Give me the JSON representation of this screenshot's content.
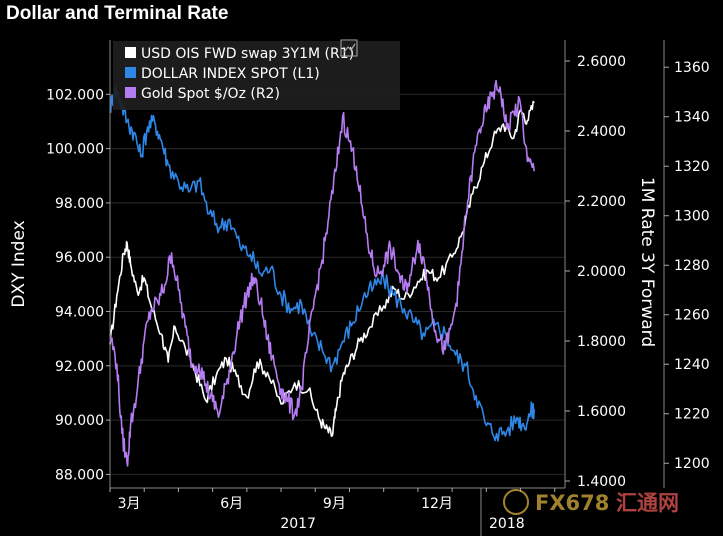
{
  "chart_data": {
    "type": "line",
    "title": "Dollar and Terminal Rate",
    "left_axis": {
      "label": "DXY Index",
      "range": [
        87.5,
        104.0
      ],
      "ticks": [
        "102.000",
        "100.000",
        "98.000",
        "96.000",
        "94.000",
        "92.000",
        "90.000",
        "88.000"
      ],
      "tick_values": [
        102,
        100,
        98,
        96,
        94,
        92,
        90,
        88
      ]
    },
    "right_axis_1": {
      "label": "1M Rate 3Y Forward",
      "range": [
        1.38,
        2.66
      ],
      "ticks": [
        "2.6000",
        "2.4000",
        "2.2000",
        "2.0000",
        "1.8000",
        "1.6000",
        "1.4000"
      ],
      "tick_values": [
        2.6,
        2.4,
        2.2,
        2.0,
        1.8,
        1.6,
        1.4
      ]
    },
    "right_axis_2": {
      "label": "",
      "range": [
        1190,
        1371
      ],
      "ticks": [
        "1360",
        "1340",
        "1320",
        "1300",
        "1280",
        "1260",
        "1240",
        "1220",
        "1200"
      ],
      "tick_values": [
        1360,
        1340,
        1320,
        1300,
        1280,
        1260,
        1240,
        1220,
        1200
      ]
    },
    "x_axis": {
      "range": [
        0,
        13.3
      ],
      "month_ticks": [
        "3月",
        "6月",
        "9月",
        "12月"
      ],
      "month_positions": [
        0.5,
        3.5,
        6.5,
        9.5
      ],
      "year_labels": [
        "2017",
        "2018"
      ],
      "year_positions": [
        5.5,
        11.6
      ]
    },
    "legend": {
      "placement": "top-left",
      "entries": [
        "USD OIS FWD swap 3Y1M  (R1)",
        "DOLLAR INDEX SPOT  (L1)",
        "Gold Spot $/Oz  (R2)"
      ]
    },
    "series": [
      {
        "name": "USD OIS FWD swap 3Y1M (R1)",
        "axis": "right1",
        "color": "#ffffff",
        "points": [
          [
            0,
            1.79
          ],
          [
            0.2,
            1.93
          ],
          [
            0.4,
            2.05
          ],
          [
            0.5,
            2.08
          ],
          [
            0.6,
            2.02
          ],
          [
            0.8,
            1.94
          ],
          [
            1.0,
            1.98
          ],
          [
            1.2,
            1.9
          ],
          [
            1.5,
            1.82
          ],
          [
            1.7,
            1.74
          ],
          [
            1.9,
            1.84
          ],
          [
            2.2,
            1.78
          ],
          [
            2.5,
            1.71
          ],
          [
            2.8,
            1.63
          ],
          [
            3.1,
            1.7
          ],
          [
            3.4,
            1.75
          ],
          [
            3.7,
            1.7
          ],
          [
            4.0,
            1.64
          ],
          [
            4.3,
            1.74
          ],
          [
            4.6,
            1.71
          ],
          [
            5.0,
            1.62
          ],
          [
            5.4,
            1.68
          ],
          [
            5.8,
            1.66
          ],
          [
            6.1,
            1.58
          ],
          [
            6.3,
            1.55
          ],
          [
            6.5,
            1.53
          ],
          [
            6.6,
            1.6
          ],
          [
            6.8,
            1.7
          ],
          [
            7.0,
            1.74
          ],
          [
            7.3,
            1.8
          ],
          [
            7.6,
            1.84
          ],
          [
            8.0,
            1.9
          ],
          [
            8.3,
            1.95
          ],
          [
            8.6,
            1.92
          ],
          [
            9.0,
            1.97
          ],
          [
            9.3,
            2.0
          ],
          [
            9.6,
            1.98
          ],
          [
            10.0,
            2.04
          ],
          [
            10.3,
            2.11
          ],
          [
            10.6,
            2.22
          ],
          [
            10.9,
            2.3
          ],
          [
            11.2,
            2.38
          ],
          [
            11.5,
            2.42
          ],
          [
            11.8,
            2.38
          ],
          [
            12.0,
            2.46
          ],
          [
            12.2,
            2.43
          ],
          [
            12.4,
            2.48
          ]
        ]
      },
      {
        "name": "DOLLAR INDEX SPOT (L1)",
        "axis": "left",
        "color": "#2e86e6",
        "points": [
          [
            0,
            101.5
          ],
          [
            0.15,
            102.2
          ],
          [
            0.3,
            101.8
          ],
          [
            0.5,
            101.0
          ],
          [
            0.7,
            100.6
          ],
          [
            0.9,
            99.7
          ],
          [
            1.1,
            100.8
          ],
          [
            1.3,
            101.0
          ],
          [
            1.5,
            100.3
          ],
          [
            1.7,
            99.4
          ],
          [
            2.0,
            98.8
          ],
          [
            2.3,
            98.4
          ],
          [
            2.6,
            98.8
          ],
          [
            2.9,
            97.6
          ],
          [
            3.2,
            97.1
          ],
          [
            3.5,
            97.4
          ],
          [
            3.8,
            96.4
          ],
          [
            4.1,
            96.1
          ],
          [
            4.4,
            95.4
          ],
          [
            4.7,
            95.6
          ],
          [
            5.0,
            94.6
          ],
          [
            5.3,
            94.1
          ],
          [
            5.6,
            94.3
          ],
          [
            5.9,
            93.1
          ],
          [
            6.2,
            92.6
          ],
          [
            6.5,
            92.0
          ],
          [
            6.8,
            92.9
          ],
          [
            7.1,
            93.6
          ],
          [
            7.4,
            94.5
          ],
          [
            7.7,
            94.9
          ],
          [
            8.0,
            95.2
          ],
          [
            8.3,
            94.6
          ],
          [
            8.6,
            94.1
          ],
          [
            8.9,
            93.6
          ],
          [
            9.2,
            93.1
          ],
          [
            9.5,
            93.5
          ],
          [
            9.8,
            93.2
          ],
          [
            10.1,
            92.4
          ],
          [
            10.4,
            92.0
          ],
          [
            10.7,
            90.9
          ],
          [
            11.0,
            89.8
          ],
          [
            11.3,
            89.5
          ],
          [
            11.6,
            89.6
          ],
          [
            11.9,
            90.1
          ],
          [
            12.1,
            89.8
          ],
          [
            12.3,
            90.3
          ],
          [
            12.4,
            90.4
          ]
        ]
      },
      {
        "name": "Gold Spot $/Oz (R2)",
        "axis": "right2",
        "color": "#b57cf2",
        "points": [
          [
            0,
            1252
          ],
          [
            0.2,
            1240
          ],
          [
            0.35,
            1212
          ],
          [
            0.5,
            1200
          ],
          [
            0.6,
            1215
          ],
          [
            0.8,
            1230
          ],
          [
            1.0,
            1250
          ],
          [
            1.2,
            1262
          ],
          [
            1.4,
            1265
          ],
          [
            1.6,
            1272
          ],
          [
            1.8,
            1285
          ],
          [
            2.0,
            1270
          ],
          [
            2.2,
            1255
          ],
          [
            2.4,
            1240
          ],
          [
            2.6,
            1240
          ],
          [
            2.8,
            1232
          ],
          [
            3.0,
            1225
          ],
          [
            3.2,
            1220
          ],
          [
            3.4,
            1232
          ],
          [
            3.6,
            1245
          ],
          [
            3.8,
            1258
          ],
          [
            4.0,
            1268
          ],
          [
            4.2,
            1275
          ],
          [
            4.4,
            1265
          ],
          [
            4.6,
            1250
          ],
          [
            4.8,
            1240
          ],
          [
            5.0,
            1230
          ],
          [
            5.2,
            1225
          ],
          [
            5.4,
            1220
          ],
          [
            5.6,
            1230
          ],
          [
            5.8,
            1250
          ],
          [
            6.0,
            1268
          ],
          [
            6.2,
            1282
          ],
          [
            6.4,
            1300
          ],
          [
            6.6,
            1318
          ],
          [
            6.8,
            1340
          ],
          [
            7.0,
            1330
          ],
          [
            7.2,
            1320
          ],
          [
            7.4,
            1300
          ],
          [
            7.6,
            1285
          ],
          [
            7.8,
            1276
          ],
          [
            8.0,
            1280
          ],
          [
            8.2,
            1287
          ],
          [
            8.4,
            1278
          ],
          [
            8.6,
            1270
          ],
          [
            8.8,
            1276
          ],
          [
            9.0,
            1290
          ],
          [
            9.2,
            1280
          ],
          [
            9.4,
            1262
          ],
          [
            9.6,
            1250
          ],
          [
            9.8,
            1246
          ],
          [
            10.0,
            1256
          ],
          [
            10.2,
            1272
          ],
          [
            10.4,
            1300
          ],
          [
            10.6,
            1320
          ],
          [
            10.8,
            1335
          ],
          [
            11.0,
            1342
          ],
          [
            11.2,
            1350
          ],
          [
            11.4,
            1352
          ],
          [
            11.6,
            1335
          ],
          [
            11.8,
            1342
          ],
          [
            12.0,
            1345
          ],
          [
            12.2,
            1322
          ],
          [
            12.4,
            1318
          ]
        ]
      }
    ]
  },
  "watermark": {
    "brand_latin": "FX678",
    "brand_cjk": "汇通网"
  }
}
